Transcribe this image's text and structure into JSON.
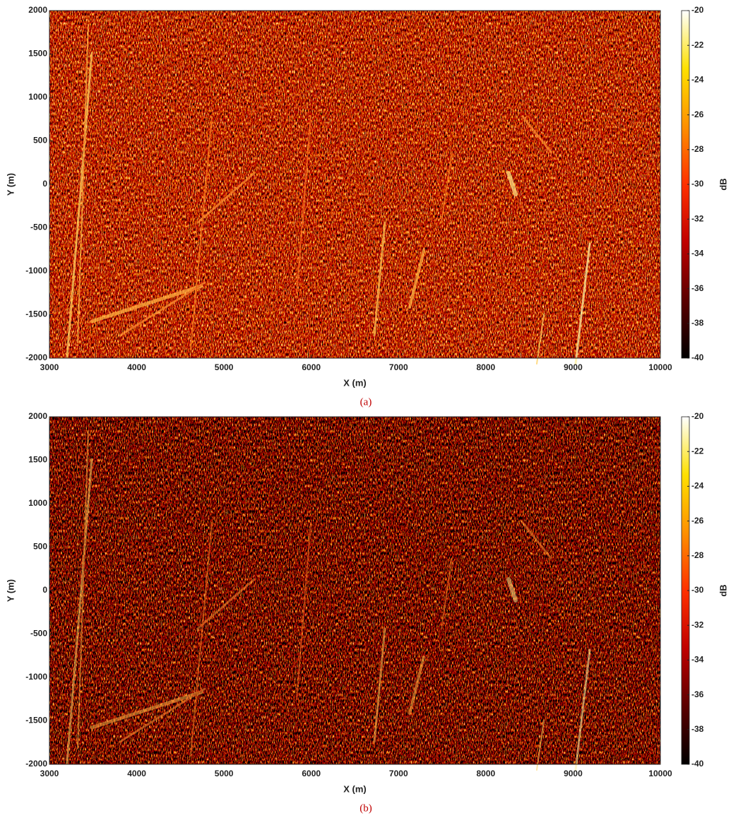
{
  "chart_data": [
    {
      "type": "heatmap",
      "xlabel": "X (m)",
      "ylabel": "Y (m)",
      "caption": "(a)",
      "xlim": [
        3000,
        10000
      ],
      "xticks": [
        3000,
        4000,
        5000,
        6000,
        7000,
        8000,
        9000,
        10000
      ],
      "ylim": [
        -2000,
        2000
      ],
      "yticks": [
        -2000,
        -1500,
        -1000,
        -500,
        0,
        500,
        1000,
        1500,
        2000
      ],
      "colorbar_label": "dB",
      "clim": [
        -40,
        -20
      ],
      "cticks": [
        -40,
        -38,
        -36,
        -34,
        -32,
        -30,
        -28,
        -26,
        -24,
        -22,
        -20
      ],
      "colormap": [
        "#000000",
        "#5a0000",
        "#c00000",
        "#ff3000",
        "#ff9000",
        "#ffe000",
        "#ffffff"
      ]
    },
    {
      "type": "heatmap",
      "xlabel": "X (m)",
      "ylabel": "Y (m)",
      "caption": "(b)",
      "xlim": [
        3000,
        10000
      ],
      "xticks": [
        3000,
        4000,
        5000,
        6000,
        7000,
        8000,
        9000,
        10000
      ],
      "ylim": [
        -2000,
        2000
      ],
      "yticks": [
        -2000,
        -1500,
        -1000,
        -500,
        0,
        500,
        1000,
        1500,
        2000
      ],
      "colorbar_label": "dB",
      "clim": [
        -40,
        -20
      ],
      "cticks": [
        -40,
        -38,
        -36,
        -34,
        -32,
        -30,
        -28,
        -26,
        -24,
        -22,
        -20
      ],
      "colormap": [
        "#000000",
        "#5a0000",
        "#c00000",
        "#ff3000",
        "#ff9000",
        "#ffe000",
        "#ffffff"
      ]
    }
  ]
}
